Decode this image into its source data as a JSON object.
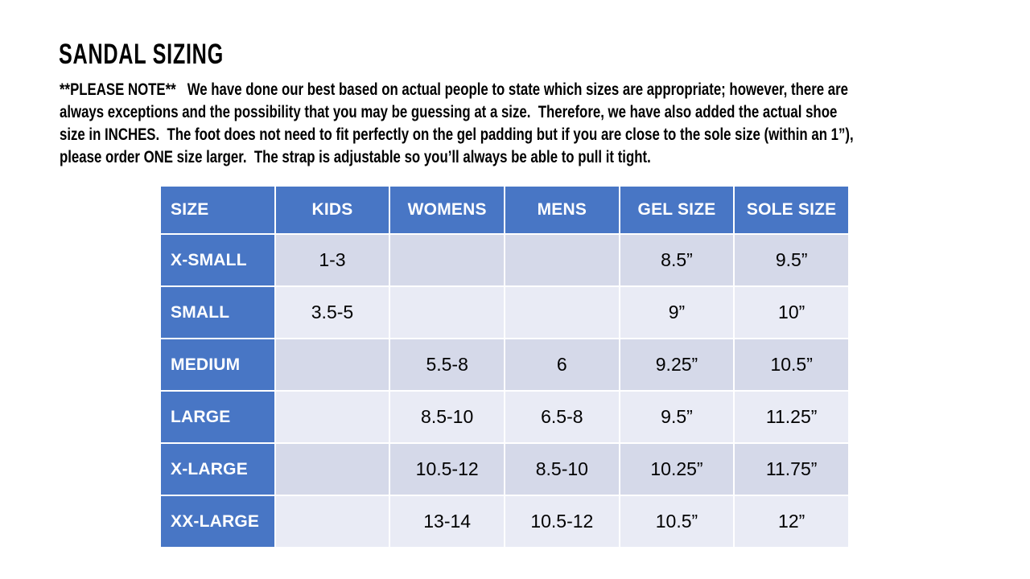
{
  "note_lines": [
    "**PLEASE NOTE**   We have done our best based on actual people to state which sizes are appropriate; however, there are",
    "always exceptions and the possibility that you may be guessing at a size.  Therefore, we have also added the actual shoe",
    "size in INCHES.  The foot does not need to fit perfectly on the gel padding but if you are close to the sole size (within an 1”),",
    "please order ONE size larger.  The strap is adjustable so you’ll always be able to pull it tight."
  ],
  "chart_data": {
    "type": "table",
    "title": "SANDAL SIZING",
    "columns": [
      "SIZE",
      "KIDS",
      "WOMENS",
      "MENS",
      "GEL SIZE",
      "SOLE SIZE"
    ],
    "rows": [
      [
        "X-SMALL",
        "1-3",
        "",
        "",
        "8.5”",
        "9.5”"
      ],
      [
        "SMALL",
        "3.5-5",
        "",
        "",
        "9”",
        "10”"
      ],
      [
        "MEDIUM",
        "",
        "5.5-8",
        "6",
        "9.25”",
        "10.5”"
      ],
      [
        "LARGE",
        "",
        "8.5-10",
        "6.5-8",
        "9.5”",
        "11.25”"
      ],
      [
        "X-LARGE",
        "",
        "10.5-12",
        "8.5-10",
        "10.25”",
        "11.75”"
      ],
      [
        "XX-LARGE",
        "",
        "13-14",
        "10.5-12",
        "10.5”",
        "12”"
      ]
    ],
    "layout": {
      "header_fill": "#4876C5",
      "first_column_fill": "#4876C5",
      "band_dark_fill": "#D5D9E9",
      "band_light_fill": "#E9EBF5",
      "header_text_color": "#FFFFFF",
      "body_text_color": "#000000",
      "gridline_color": "#FFFFFF",
      "banded_rows": true
    }
  }
}
